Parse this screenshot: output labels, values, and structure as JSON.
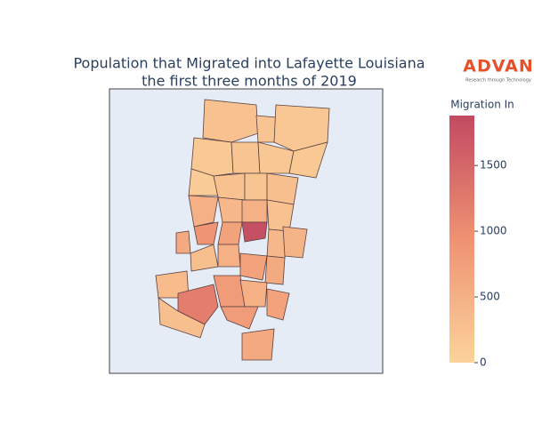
{
  "chart_data": {
    "type": "choropleth",
    "title": [
      "Population that Migrated into Lafayette Louisiana",
      "the first three months of 2019"
    ],
    "logo": {
      "name": "ADVAN",
      "tagline": "Research through Technology"
    },
    "colorbar_title": "Migration In",
    "colorscale": [
      "#fbd39b",
      "#ef9272",
      "#c24a62"
    ],
    "zlim": [
      0,
      1880
    ],
    "zticks": [
      0,
      500,
      1000,
      1500
    ],
    "values": [
      250,
      200,
      180,
      150,
      200,
      180,
      150,
      120,
      250,
      200,
      300,
      500,
      400,
      500,
      250,
      600,
      900,
      700,
      1800,
      400,
      300,
      500,
      700,
      600,
      350,
      1200,
      800,
      500,
      800,
      700,
      300,
      450,
      600
    ]
  }
}
